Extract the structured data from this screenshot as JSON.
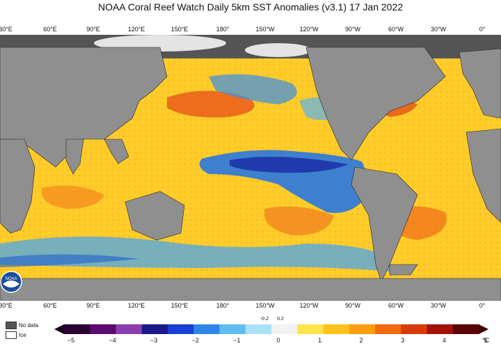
{
  "title": "NOAA Coral Reef Watch Daily 5km SST Anomalies  (v3.1)   17 Jan 2022",
  "longitude_labels": [
    "30°E",
    "60°E",
    "90°E",
    "120°E",
    "150°E",
    "180°",
    "150°W",
    "120°W",
    "90°W",
    "60°W",
    "30°W",
    "0°"
  ],
  "legend": {
    "no_data_label": "No data",
    "ice_label": "Ice",
    "no_data_color": "#555555",
    "ice_color": "#ffffff"
  },
  "colorbar": {
    "ticks": [
      "−5",
      "−4",
      "−3",
      "−2",
      "−1",
      "0",
      "1",
      "2",
      "3",
      "4",
      "5"
    ],
    "inner_ticks": [
      "-0.2",
      "0.2"
    ],
    "unit": "°C",
    "colors": [
      "#2b0030",
      "#5c0a6e",
      "#8a3fb0",
      "#1b1a8a",
      "#1a3fd6",
      "#2f86e8",
      "#5fbdf2",
      "#a9e1f7",
      "#f2f2f2",
      "#ffe34d",
      "#ffc21a",
      "#ff9d0f",
      "#f26b0f",
      "#d93a0a",
      "#a31206",
      "#5c0202"
    ]
  },
  "logo": {
    "name": "NOAA"
  }
}
